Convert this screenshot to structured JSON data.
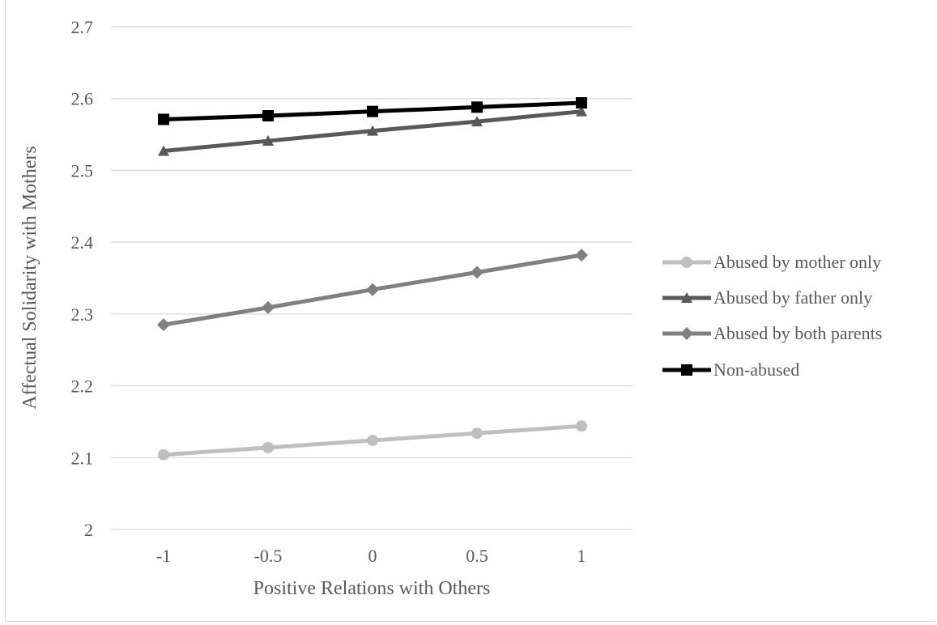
{
  "chart_data": {
    "type": "line",
    "title": "",
    "xlabel": "Positive Relations with Others",
    "ylabel": "Affectual Solidarity with Mothers",
    "x": [
      -1,
      -0.5,
      0,
      0.5,
      1
    ],
    "x_tick_labels": [
      "-1",
      "-0.5",
      "0",
      "0.5",
      "1"
    ],
    "ylim": [
      2,
      2.7
    ],
    "y_ticks": [
      2,
      2.1,
      2.2,
      2.3,
      2.4,
      2.5,
      2.6,
      2.7
    ],
    "y_tick_labels": [
      "2",
      "2.1",
      "2.2",
      "2.3",
      "2.4",
      "2.5",
      "2.6",
      "2.7"
    ],
    "grid": true,
    "legend_position": "right",
    "series": [
      {
        "name": "Abused by mother only",
        "marker": "circle",
        "color": "#bfbfbf",
        "values": [
          2.104,
          2.114,
          2.124,
          2.134,
          2.144
        ]
      },
      {
        "name": "Abused by father only",
        "marker": "triangle",
        "color": "#595959",
        "values": [
          2.527,
          2.541,
          2.555,
          2.568,
          2.582
        ]
      },
      {
        "name": "Abused by both parents",
        "marker": "diamond",
        "color": "#808080",
        "values": [
          2.285,
          2.309,
          2.334,
          2.358,
          2.382
        ]
      },
      {
        "name": "Non-abused",
        "marker": "square",
        "color": "#000000",
        "values": [
          2.571,
          2.576,
          2.582,
          2.588,
          2.594
        ]
      }
    ]
  }
}
